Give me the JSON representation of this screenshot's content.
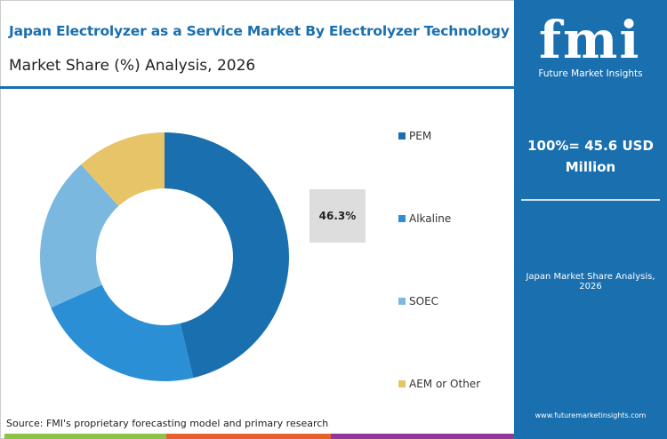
{
  "header": {
    "title": "Japan Electrolyzer as a Service Market By Electrolyzer Technology",
    "subtitle": "Market Share (%) Analysis, 2026"
  },
  "panel": {
    "logo_text": "fmi",
    "logo_subtext": "Future Market Insights",
    "total": "100%= 45.6 USD Million",
    "caption": "Japan Market Share Analysis, 2026",
    "url": "www.futuremarketinsights.com"
  },
  "footer": {
    "source": "Source: FMI's proprietary forecasting model and primary research",
    "bar_colors": [
      "#8bc34a",
      "#e8602c",
      "#8e3a96"
    ]
  },
  "chart_data": {
    "type": "pie",
    "donut": true,
    "title": "",
    "categories": [
      "PEM",
      "Alkaline",
      "SOEC",
      "AEM or Other"
    ],
    "values": [
      46.3,
      22.0,
      20.0,
      11.7
    ],
    "colors": [
      "#1a6fae",
      "#2b8fd6",
      "#7ab8e0",
      "#e8c468"
    ],
    "data_labels": [
      "46.3%"
    ],
    "legend_position": "right"
  }
}
